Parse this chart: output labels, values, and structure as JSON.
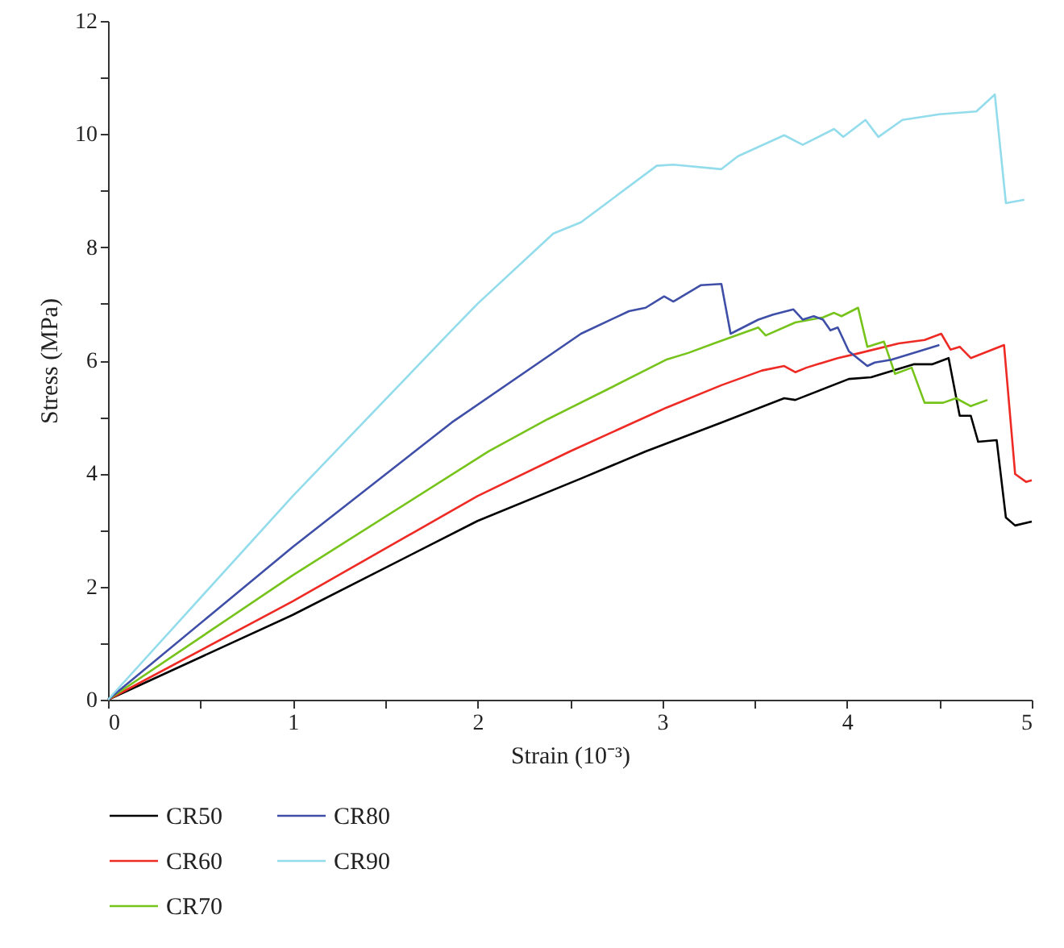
{
  "chart_data": {
    "type": "line",
    "xlabel": "Strain (10⁻³)",
    "ylabel": "Stress (MPa)",
    "xlim": [
      0,
      5
    ],
    "ylim": [
      0,
      12
    ],
    "xticks": [
      0,
      {
        "value": 0.5,
        "label": null
      },
      1,
      {
        "value": 1.5,
        "label": null
      },
      2,
      {
        "value": 2.5,
        "label": null
      },
      3,
      {
        "value": 3.5,
        "label": null
      },
      4,
      {
        "value": 4.5,
        "label": null
      },
      5
    ],
    "yticks": [
      0,
      {
        "value": 1,
        "label": null
      },
      2,
      {
        "value": 3,
        "label": null
      },
      4,
      {
        "value": 5,
        "label": null
      },
      6,
      {
        "value": 7,
        "label": null
      },
      8,
      {
        "value": 9,
        "label": null
      },
      10,
      {
        "value": 11,
        "label": null
      },
      12
    ],
    "grid": false,
    "legend": "bottom",
    "line_style": "solid",
    "marker": "none",
    "series": [
      {
        "name": "CR50",
        "color": "#000000",
        "x": [
          0,
          1,
          2,
          2.56,
          2.91,
          3.32,
          3.66,
          3.72,
          4.01,
          4.13,
          4.36,
          4.46,
          4.55,
          4.61,
          4.67,
          4.71,
          4.81,
          4.86,
          4.91,
          5.0
        ],
        "values": [
          0,
          1.5,
          3.16,
          3.91,
          4.39,
          4.9,
          5.33,
          5.3,
          5.67,
          5.7,
          5.93,
          5.93,
          6.04,
          5.02,
          5.02,
          4.56,
          4.59,
          3.22,
          3.08,
          3.15
        ]
      },
      {
        "name": "CR60",
        "color": "#ee2a24",
        "x": [
          0,
          1,
          2,
          2.5,
          3.02,
          3.32,
          3.54,
          3.66,
          3.72,
          3.78,
          3.95,
          4.07,
          4.28,
          4.42,
          4.51,
          4.56,
          4.61,
          4.67,
          4.85,
          4.91,
          4.97,
          5.0
        ],
        "values": [
          0,
          1.74,
          3.6,
          4.39,
          5.16,
          5.56,
          5.82,
          5.9,
          5.79,
          5.87,
          6.04,
          6.13,
          6.3,
          6.36,
          6.47,
          6.19,
          6.24,
          6.04,
          6.27,
          3.99,
          3.85,
          3.88
        ]
      },
      {
        "name": "CR70",
        "color": "#76c41b",
        "x": [
          0,
          1,
          2.06,
          2.38,
          2.73,
          3.02,
          3.14,
          3.28,
          3.52,
          3.56,
          3.72,
          3.87,
          3.93,
          3.97,
          4.06,
          4.11,
          4.2,
          4.26,
          4.35,
          4.42,
          4.52,
          4.59,
          4.67,
          4.76
        ],
        "values": [
          0,
          2.2,
          4.39,
          4.96,
          5.53,
          6.01,
          6.13,
          6.3,
          6.58,
          6.44,
          6.67,
          6.76,
          6.84,
          6.78,
          6.93,
          6.24,
          6.33,
          5.76,
          5.87,
          5.25,
          5.25,
          5.33,
          5.19,
          5.3
        ]
      },
      {
        "name": "CR80",
        "color": "#3f4fa8",
        "x": [
          0,
          1,
          1.86,
          2.56,
          2.82,
          2.91,
          3.01,
          3.06,
          3.21,
          3.32,
          3.37,
          3.52,
          3.6,
          3.71,
          3.76,
          3.82,
          3.87,
          3.91,
          3.95,
          4.01,
          4.11,
          4.15,
          4.24,
          4.39,
          4.5
        ],
        "values": [
          0,
          2.7,
          4.9,
          6.47,
          6.87,
          6.93,
          7.13,
          7.04,
          7.33,
          7.35,
          6.47,
          6.72,
          6.81,
          6.9,
          6.72,
          6.78,
          6.72,
          6.53,
          6.58,
          6.16,
          5.9,
          5.96,
          6.01,
          6.16,
          6.27
        ]
      },
      {
        "name": "CR90",
        "color": "#93dcec",
        "x": [
          0,
          1,
          1.86,
          2,
          2.41,
          2.56,
          2.97,
          3.06,
          3.32,
          3.41,
          3.66,
          3.76,
          3.93,
          3.98,
          4.1,
          4.17,
          4.3,
          4.5,
          4.7,
          4.8,
          4.86,
          4.96
        ],
        "values": [
          0,
          3.6,
          6.53,
          7.0,
          8.24,
          8.44,
          9.44,
          9.46,
          9.38,
          9.61,
          9.98,
          9.81,
          10.09,
          9.95,
          10.25,
          9.95,
          10.25,
          10.35,
          10.4,
          10.7,
          8.78,
          8.84
        ]
      }
    ]
  }
}
